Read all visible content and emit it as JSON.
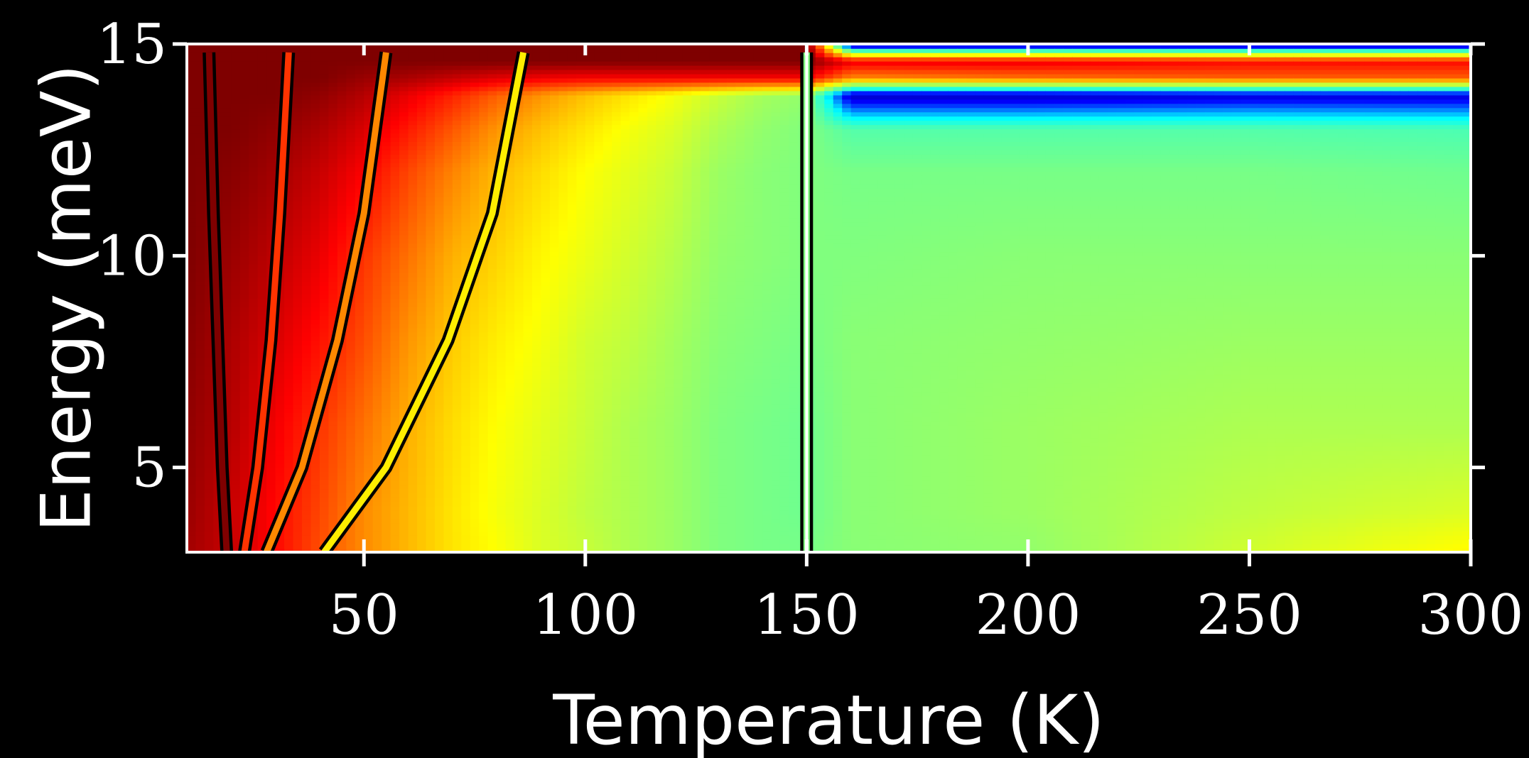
{
  "chart_data": {
    "type": "heatmap",
    "xlabel": "Temperature (K)",
    "ylabel": "Energy (meV)",
    "xlim": [
      10,
      300
    ],
    "ylim": [
      3,
      15
    ],
    "xticks": [
      50,
      100,
      150,
      200,
      250,
      300
    ],
    "yticks": [
      5,
      10,
      15
    ],
    "xtick_labels": [
      "50",
      "100",
      "150",
      "200",
      "250",
      "300"
    ],
    "ytick_labels": [
      "5",
      "10",
      "15"
    ],
    "colormap": "jet",
    "colormap_stops": [
      "#00007f",
      "#0000ff",
      "#00ffff",
      "#7fff7f",
      "#ffff00",
      "#ff7f00",
      "#ff0000",
      "#7f0000"
    ],
    "grid": false,
    "legend": "none",
    "divider_temperature": 150,
    "intensity_grid": {
      "energy": [
        3,
        4,
        6,
        8,
        10,
        12,
        13,
        13.8,
        14.2,
        14.6,
        15
      ],
      "temperature": [
        10,
        20,
        30,
        40,
        50,
        60,
        70,
        80,
        90,
        100,
        110,
        120,
        130,
        140,
        150,
        160,
        200,
        250,
        300
      ],
      "rows": [
        [
          0.96,
          0.92,
          0.85,
          0.77,
          0.7,
          0.65,
          0.6,
          0.57,
          0.53,
          0.51,
          0.48,
          0.46,
          0.43,
          0.42,
          0.42,
          0.44,
          0.45,
          0.52,
          0.58
        ],
        [
          0.97,
          0.92,
          0.85,
          0.78,
          0.7,
          0.65,
          0.6,
          0.56,
          0.53,
          0.5,
          0.48,
          0.46,
          0.43,
          0.42,
          0.41,
          0.44,
          0.46,
          0.5,
          0.53
        ],
        [
          0.98,
          0.94,
          0.87,
          0.8,
          0.73,
          0.66,
          0.61,
          0.57,
          0.54,
          0.51,
          0.48,
          0.46,
          0.43,
          0.42,
          0.41,
          0.44,
          0.46,
          0.48,
          0.48
        ],
        [
          0.99,
          0.95,
          0.9,
          0.84,
          0.77,
          0.69,
          0.63,
          0.59,
          0.56,
          0.52,
          0.5,
          0.47,
          0.44,
          0.43,
          0.42,
          0.44,
          0.45,
          0.46,
          0.46
        ],
        [
          1.0,
          0.97,
          0.93,
          0.88,
          0.8,
          0.73,
          0.66,
          0.62,
          0.58,
          0.55,
          0.52,
          0.49,
          0.45,
          0.44,
          0.43,
          0.43,
          0.44,
          0.44,
          0.44
        ],
        [
          1.0,
          0.99,
          0.96,
          0.92,
          0.86,
          0.78,
          0.71,
          0.65,
          0.61,
          0.57,
          0.54,
          0.51,
          0.46,
          0.44,
          0.43,
          0.42,
          0.42,
          0.42,
          0.41
        ],
        [
          1.0,
          1.0,
          0.98,
          0.95,
          0.9,
          0.83,
          0.76,
          0.69,
          0.64,
          0.6,
          0.56,
          0.53,
          0.48,
          0.45,
          0.43,
          0.38,
          0.38,
          0.38,
          0.37
        ],
        [
          1.0,
          1.0,
          1.0,
          0.98,
          0.94,
          0.88,
          0.82,
          0.75,
          0.69,
          0.64,
          0.6,
          0.56,
          0.51,
          0.47,
          0.45,
          0.08,
          0.08,
          0.1,
          0.1
        ],
        [
          1.0,
          1.0,
          1.0,
          1.0,
          0.97,
          0.95,
          0.92,
          0.89,
          0.87,
          0.86,
          0.86,
          0.86,
          0.86,
          0.86,
          0.86,
          0.7,
          0.73,
          0.75,
          0.75
        ],
        [
          1.0,
          1.0,
          1.0,
          1.0,
          1.0,
          1.0,
          1.0,
          1.0,
          1.0,
          1.0,
          1.0,
          1.0,
          1.0,
          1.0,
          1.0,
          0.88,
          0.88,
          0.85,
          0.85
        ],
        [
          1.0,
          1.0,
          1.0,
          1.0,
          1.0,
          1.0,
          1.0,
          1.0,
          1.0,
          1.0,
          1.0,
          1.0,
          1.0,
          1.0,
          1.0,
          0.05,
          0.05,
          0.05,
          0.05
        ]
      ]
    },
    "contour_curves": [
      {
        "color": "#7f0000",
        "points": [
          [
            19,
            3
          ],
          [
            18,
            5
          ],
          [
            17,
            8
          ],
          [
            16,
            11
          ],
          [
            15,
            14.8
          ]
        ]
      },
      {
        "color": "#ff3300",
        "points": [
          [
            23,
            3
          ],
          [
            26,
            5
          ],
          [
            29,
            8
          ],
          [
            31,
            11
          ],
          [
            33,
            14.8
          ]
        ]
      },
      {
        "color": "#ff8800",
        "points": [
          [
            28,
            3
          ],
          [
            36,
            5
          ],
          [
            44,
            8
          ],
          [
            50,
            11
          ],
          [
            55,
            14.8
          ]
        ]
      },
      {
        "color": "#ffee00",
        "points": [
          [
            41,
            3
          ],
          [
            55,
            5
          ],
          [
            69,
            8
          ],
          [
            79,
            11
          ],
          [
            86,
            14.8
          ]
        ]
      },
      {
        "color": "#7fff7f",
        "points": [
          [
            150,
            3
          ],
          [
            150,
            14.8
          ]
        ]
      }
    ]
  }
}
